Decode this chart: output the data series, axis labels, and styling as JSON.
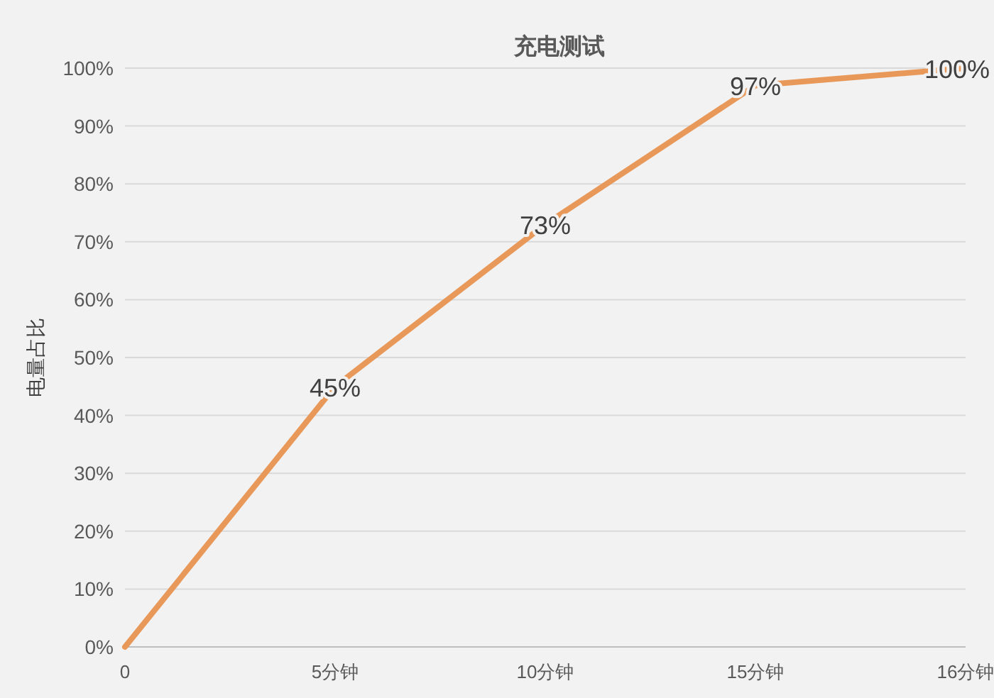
{
  "chart_data": {
    "type": "line",
    "title": "充电测试",
    "ylabel": "电量占比",
    "categories": [
      "0",
      "5分钟",
      "10分钟",
      "15分钟",
      "16分钟"
    ],
    "series": [
      {
        "color": "#e8995a",
        "values": [
          0,
          45,
          73,
          97,
          100
        ],
        "value_labels": [
          null,
          "45%",
          "73%",
          "97%",
          "100%"
        ]
      }
    ],
    "ylim": [
      0,
      100
    ],
    "yticks": [
      {
        "value": 0,
        "label": "0%"
      },
      {
        "value": 10,
        "label": "10%"
      },
      {
        "value": 20,
        "label": "20%"
      },
      {
        "value": 30,
        "label": "30%"
      },
      {
        "value": 40,
        "label": "40%"
      },
      {
        "value": 50,
        "label": "50%"
      },
      {
        "value": 60,
        "label": "60%"
      },
      {
        "value": 70,
        "label": "70%"
      },
      {
        "value": 80,
        "label": "80%"
      },
      {
        "value": 90,
        "label": "90%"
      },
      {
        "value": 100,
        "label": "100%"
      }
    ],
    "grid": "y",
    "marker": "none",
    "line_style": "solid"
  }
}
